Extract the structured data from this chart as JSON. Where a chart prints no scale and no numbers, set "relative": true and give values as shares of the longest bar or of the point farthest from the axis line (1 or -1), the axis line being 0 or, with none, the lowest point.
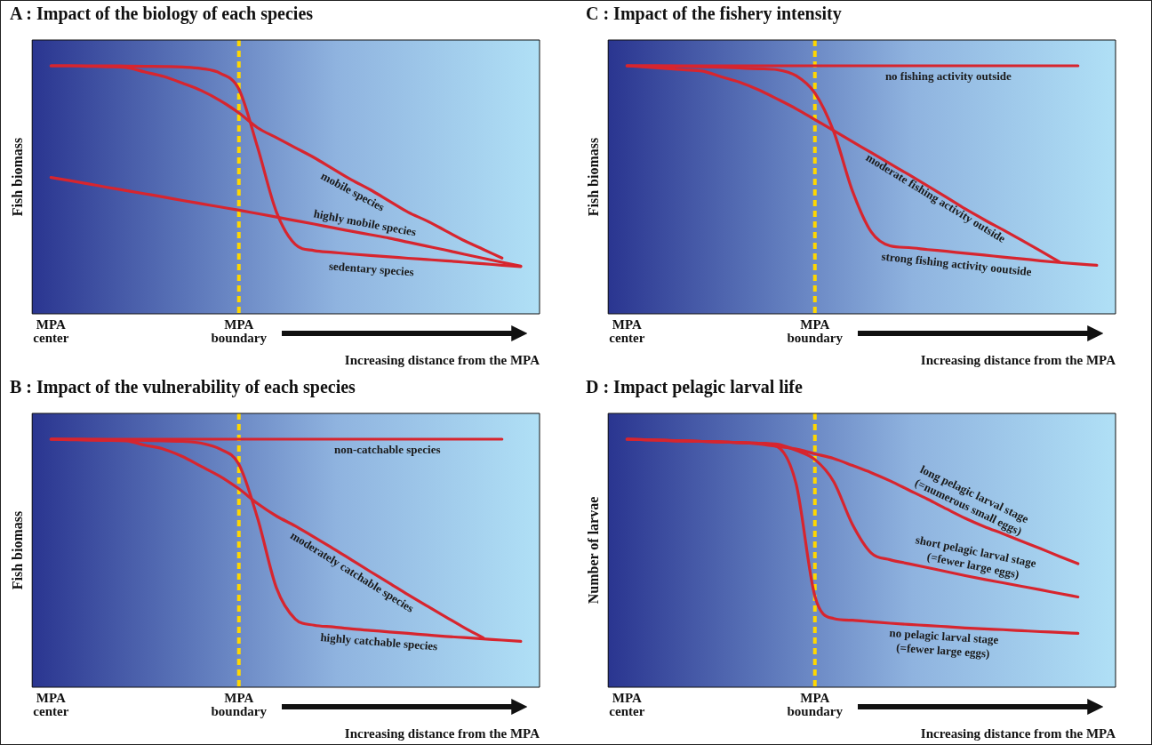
{
  "chart_data": [
    {
      "type": "line",
      "title": "A : Impact of the biology of each species",
      "xlabel": "Increasing distance from the MPA",
      "ylabel": "Fish biomass",
      "relative": true,
      "categories": [
        null,
        "MPA center",
        null,
        null,
        null,
        null,
        null,
        null,
        null,
        null,
        null,
        "MPA boundary",
        null,
        null,
        null,
        null,
        null,
        null,
        null,
        null,
        null,
        null,
        null,
        null,
        null,
        null,
        null,
        null
      ],
      "ref_lines": [
        {
          "axis": "x",
          "value": "MPA boundary",
          "color": "#ffd700",
          "line_style": "dashed"
        }
      ],
      "marker": "none",
      "line_style": "solid",
      "legend": false,
      "series": [
        {
          "name": "sedentary species",
          "color": "#d7252e",
          "values": [
            null,
            1.0,
            1.0,
            1.0,
            1.0,
            0.999,
            0.998,
            0.997,
            0.995,
            0.989,
            0.97,
            0.906,
            0.67,
            0.41,
            0.28,
            0.255,
            0.248,
            0.241,
            0.235,
            0.23,
            0.224,
            0.219,
            0.214,
            0.208,
            0.202,
            0.196,
            0.19,
            null
          ]
        },
        {
          "name": "mobile species",
          "color": "#d7252e",
          "values": [
            null,
            1.0,
            1.0,
            0.998,
            0.996,
            0.993,
            0.975,
            0.957,
            0.93,
            0.9,
            0.86,
            0.81,
            0.75,
            0.71,
            0.67,
            0.63,
            0.585,
            0.54,
            0.5,
            0.455,
            0.41,
            0.375,
            0.335,
            0.295,
            0.26,
            0.225,
            null,
            null
          ]
        },
        {
          "name": "highly mobile species",
          "color": "#d7252e",
          "values": [
            null,
            0.55,
            0.537,
            0.524,
            0.51,
            0.497,
            0.484,
            0.471,
            0.457,
            0.444,
            0.431,
            0.418,
            0.404,
            0.39,
            0.376,
            0.362,
            0.347,
            0.333,
            0.319,
            0.305,
            0.289,
            0.273,
            0.257,
            0.24,
            0.224,
            0.208,
            0.192,
            null
          ]
        }
      ]
    },
    {
      "type": "line",
      "title": "C : Impact of the fishery intensity",
      "xlabel": "Increasing distance from the MPA",
      "ylabel": "Fish biomass",
      "relative": true,
      "categories": [
        null,
        "MPA center",
        null,
        null,
        null,
        null,
        null,
        null,
        null,
        null,
        null,
        "MPA boundary",
        null,
        null,
        null,
        null,
        null,
        null,
        null,
        null,
        null,
        null,
        null,
        null,
        null,
        null,
        null,
        null
      ],
      "ref_lines": [
        {
          "axis": "x",
          "value": "MPA boundary",
          "color": "#ffd700",
          "line_style": "dashed"
        }
      ],
      "marker": "none",
      "line_style": "solid",
      "legend": false,
      "series": [
        {
          "name": "no fishing activity outside",
          "color": "#d7252e",
          "values": [
            null,
            1.0,
            1.0,
            1.0,
            1.0,
            1.0,
            1.0,
            1.0,
            1.0,
            1.0,
            1.0,
            1.0,
            1.0,
            1.0,
            1.0,
            1.0,
            1.0,
            1.0,
            1.0,
            1.0,
            1.0,
            1.0,
            1.0,
            1.0,
            1.0,
            1.0,
            null,
            null
          ]
        },
        {
          "name": "moderate fishing activity outside",
          "color": "#d7252e",
          "values": [
            null,
            1.0,
            0.995,
            0.99,
            0.984,
            0.979,
            0.956,
            0.934,
            0.903,
            0.866,
            0.827,
            0.783,
            0.739,
            0.694,
            0.65,
            0.605,
            0.561,
            0.516,
            0.47,
            0.423,
            0.38,
            0.339,
            0.297,
            0.254,
            0.21,
            null,
            null,
            null
          ]
        },
        {
          "name": "strong fishing activity ooutside",
          "color": "#d7252e",
          "values": [
            null,
            1.0,
            1.0,
            0.999,
            0.998,
            0.996,
            0.994,
            0.991,
            0.988,
            0.984,
            0.96,
            0.89,
            0.735,
            0.495,
            0.33,
            0.274,
            0.267,
            0.259,
            0.252,
            0.244,
            0.237,
            0.229,
            0.222,
            0.214,
            0.207,
            0.201,
            0.196,
            null
          ]
        }
      ]
    },
    {
      "type": "line",
      "title": "B : Impact of the vulnerability of each species",
      "xlabel": "Increasing distance from the MPA",
      "ylabel": "Fish biomass",
      "relative": true,
      "categories": [
        null,
        "MPA center",
        null,
        null,
        null,
        null,
        null,
        null,
        null,
        null,
        null,
        "MPA boundary",
        null,
        null,
        null,
        null,
        null,
        null,
        null,
        null,
        null,
        null,
        null,
        null,
        null,
        null,
        null,
        null
      ],
      "ref_lines": [
        {
          "axis": "x",
          "value": "MPA boundary",
          "color": "#ffd700",
          "line_style": "dashed"
        }
      ],
      "marker": "none",
      "line_style": "solid",
      "legend": false,
      "series": [
        {
          "name": "non-catchable species",
          "color": "#d7252e",
          "values": [
            null,
            1.0,
            1.0,
            1.0,
            1.0,
            1.0,
            1.0,
            1.0,
            1.0,
            1.0,
            1.0,
            1.0,
            1.0,
            1.0,
            1.0,
            1.0,
            1.0,
            1.0,
            1.0,
            1.0,
            1.0,
            1.0,
            1.0,
            1.0,
            1.0,
            1.0,
            null,
            null
          ]
        },
        {
          "name": "moderately catchable species",
          "color": "#d7252e",
          "values": [
            null,
            1.0,
            0.998,
            0.996,
            0.995,
            0.993,
            0.976,
            0.96,
            0.93,
            0.89,
            0.85,
            0.8,
            0.74,
            0.69,
            0.65,
            0.605,
            0.56,
            0.513,
            0.466,
            0.42,
            0.373,
            0.328,
            0.284,
            0.24,
            0.199,
            null,
            null,
            null
          ]
        },
        {
          "name": "highly catchable species",
          "color": "#d7252e",
          "values": [
            null,
            1.0,
            1.0,
            0.999,
            0.998,
            0.997,
            0.995,
            0.993,
            0.991,
            0.984,
            0.96,
            0.899,
            0.68,
            0.4,
            0.275,
            0.25,
            0.243,
            0.235,
            0.229,
            0.223,
            0.217,
            0.211,
            0.205,
            0.2,
            0.195,
            0.19,
            0.185,
            null
          ]
        }
      ]
    },
    {
      "type": "line",
      "title": "D : Impact pelagic larval life",
      "xlabel": "Increasing distance from the MPA",
      "ylabel": "Number of larvae",
      "relative": true,
      "categories": [
        null,
        "MPA center",
        null,
        null,
        null,
        null,
        null,
        null,
        null,
        null,
        null,
        "MPA boundary",
        null,
        null,
        null,
        null,
        null,
        null,
        null,
        null,
        null,
        null,
        null,
        null,
        null,
        null,
        null,
        null
      ],
      "ref_lines": [
        {
          "axis": "x",
          "value": "MPA boundary",
          "color": "#ffd700",
          "line_style": "dashed"
        }
      ],
      "marker": "none",
      "line_style": "solid",
      "legend": false,
      "series": [
        {
          "name": "long pelagic larval stage\n(=numerous small eggs)",
          "color": "#d7252e",
          "values": [
            null,
            1.0,
            0.998,
            0.996,
            0.993,
            0.991,
            0.989,
            0.987,
            0.981,
            0.971,
            0.96,
            0.941,
            0.922,
            0.894,
            0.865,
            0.832,
            0.795,
            0.758,
            0.719,
            0.681,
            0.648,
            0.619,
            0.589,
            0.559,
            0.528,
            0.498,
            null,
            null
          ]
        },
        {
          "name": "short pelagic larval stage\n(=fewer large eggs)",
          "color": "#d7252e",
          "values": [
            null,
            1.0,
            0.998,
            0.995,
            0.993,
            0.991,
            0.989,
            0.986,
            0.984,
            0.98,
            0.955,
            0.918,
            0.829,
            0.656,
            0.541,
            0.514,
            0.498,
            0.482,
            0.466,
            0.45,
            0.435,
            0.421,
            0.407,
            0.393,
            0.378,
            0.364,
            null,
            null
          ]
        },
        {
          "name": "no pelagic larval stage\n(=fewer large eggs)",
          "color": "#d7252e",
          "values": [
            null,
            1.0,
            0.998,
            0.995,
            0.993,
            0.991,
            0.989,
            0.986,
            0.984,
            0.97,
            0.82,
            0.367,
            0.277,
            0.27,
            0.264,
            0.258,
            0.253,
            0.249,
            0.244,
            0.239,
            0.235,
            0.232,
            0.228,
            0.224,
            0.221,
            0.217,
            null,
            null
          ]
        }
      ]
    }
  ]
}
